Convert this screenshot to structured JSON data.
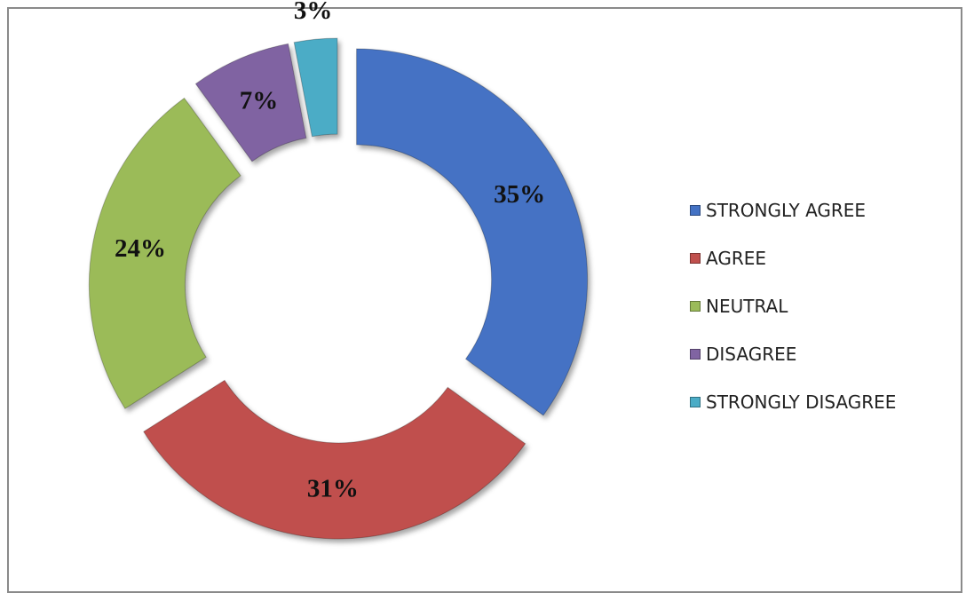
{
  "chart_data": {
    "type": "pie",
    "style": "exploded-doughnut",
    "categories": [
      "STRONGLY AGREE",
      "AGREE",
      "NEUTRAL",
      "DISAGREE",
      "STRONGLY DISAGREE"
    ],
    "values": [
      35,
      31,
      24,
      7,
      3
    ],
    "value_labels": [
      "35%",
      "31%",
      "24%",
      "7%",
      "3%"
    ],
    "colors": [
      "#4472C4",
      "#C0504D",
      "#9BBB59",
      "#8064A2",
      "#4BACC6"
    ],
    "legend_position": "right",
    "title": ""
  }
}
